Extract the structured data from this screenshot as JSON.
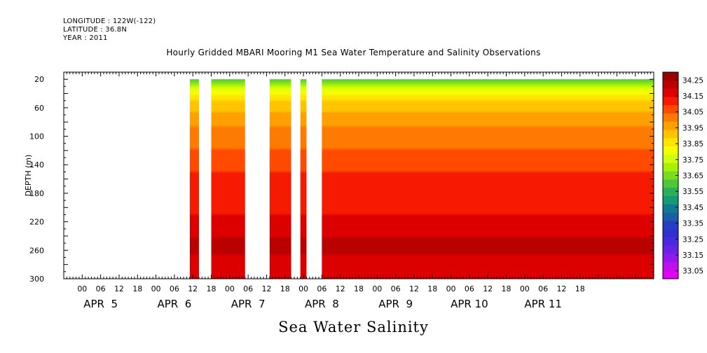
{
  "header": {
    "longitude": "LONGITUDE : 122W(-122)",
    "latitude": "LATITUDE : 36.8N",
    "year": "YEAR : 2011"
  },
  "title": "Hourly Gridded MBARI Mooring M1 Sea Water Temperature and Salinity Observations",
  "bottom_title": "Sea Water Salinity",
  "chart_data": {
    "type": "heatmap",
    "title": "Hourly Gridded MBARI Mooring M1 Sea Water Temperature and Salinity Observations",
    "xlabel": "",
    "ylabel": "DEPTH (m)",
    "y_ticks": [
      20,
      60,
      100,
      140,
      180,
      220,
      260,
      300
    ],
    "y_range": [
      10,
      300
    ],
    "y_inverted": true,
    "x_range_hours": [
      -6,
      186
    ],
    "x_hour_ticks": [
      "00",
      "06",
      "12",
      "18",
      "00",
      "06",
      "12",
      "18",
      "00",
      "06",
      "12",
      "18",
      "00",
      "06",
      "12",
      "18",
      "00",
      "06",
      "12",
      "18",
      "00",
      "06",
      "12",
      "18",
      "00",
      "06",
      "12",
      "18"
    ],
    "x_day_labels": [
      "APR  5",
      "APR  6",
      "APR  7",
      "APR  8",
      "APR  9",
      "APR 10",
      "APR 11"
    ],
    "missing_data_hours": [
      [
        -6,
        35
      ],
      [
        38,
        42
      ],
      [
        53,
        61
      ],
      [
        68,
        71
      ],
      [
        73,
        78
      ]
    ],
    "depth_profile": [
      {
        "depth": 20,
        "value": 33.6
      },
      {
        "depth": 30,
        "value": 33.72
      },
      {
        "depth": 40,
        "value": 33.82
      },
      {
        "depth": 55,
        "value": 33.9
      },
      {
        "depth": 70,
        "value": 33.95
      },
      {
        "depth": 90,
        "value": 34.0
      },
      {
        "depth": 110,
        "value": 34.03
      },
      {
        "depth": 130,
        "value": 34.06
      },
      {
        "depth": 160,
        "value": 34.11
      },
      {
        "depth": 200,
        "value": 34.13
      },
      {
        "depth": 220,
        "value": 34.16
      },
      {
        "depth": 240,
        "value": 34.18
      },
      {
        "depth": 250,
        "value": 34.24
      },
      {
        "depth": 262,
        "value": 34.2
      },
      {
        "depth": 280,
        "value": 34.18
      },
      {
        "depth": 300,
        "value": 34.16
      }
    ],
    "colorbar": {
      "levels": [
        "34.25",
        "34.15",
        "34.05",
        "33.95",
        "33.85",
        "33.75",
        "33.65",
        "33.55",
        "33.45",
        "33.35",
        "33.25",
        "33.15",
        "33.05"
      ],
      "colors": [
        "#9a0000",
        "#bb0000",
        "#dd0000",
        "#f51a00",
        "#ff4a00",
        "#ff7a00",
        "#ffa000",
        "#ffc400",
        "#ffe400",
        "#f2ff00",
        "#cfff10",
        "#a8f000",
        "#78dd20",
        "#4ec83a",
        "#2bb05a",
        "#159a78",
        "#127a90",
        "#1a5ea8",
        "#2440c0",
        "#3030d0",
        "#4a2ae0",
        "#6a22e8",
        "#9418ee",
        "#c010f0",
        "#e000f4"
      ]
    }
  }
}
